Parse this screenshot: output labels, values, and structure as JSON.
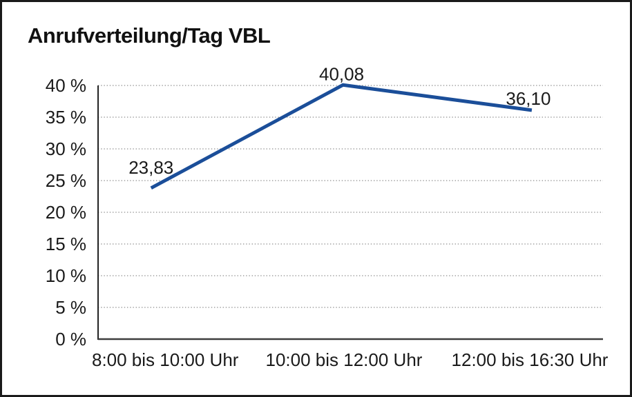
{
  "page": {
    "background": "#ffffff",
    "frame_color": "#1a1a1a"
  },
  "chart": {
    "title": "Anrufverteilung/Tag VBL"
  },
  "chart_data": {
    "type": "line",
    "title": "Anrufverteilung/Tag VBL",
    "categories": [
      "8:00 bis 10:00 Uhr",
      "10:00 bis 12:00 Uhr",
      "12:00 bis 16:30 Uhr"
    ],
    "values": [
      23.83,
      40.08,
      36.1
    ],
    "value_labels": [
      "23,83",
      "40,08",
      "36,10"
    ],
    "xlabel": "",
    "ylabel": "",
    "ylim": [
      0,
      40
    ],
    "yticks": [
      0,
      5,
      10,
      15,
      20,
      25,
      30,
      35,
      40
    ],
    "ytick_labels": [
      "0 %",
      "5 %",
      "10 %",
      "15 %",
      "20 %",
      "25 %",
      "30 %",
      "35 %",
      "40 %"
    ],
    "grid": "horizontal-dotted",
    "legend": "none",
    "line_color": "#1b4e99",
    "grid_color": "#8c8c8c",
    "axis_color": "#3d3d3d",
    "text_color": "#1a1a1a"
  }
}
